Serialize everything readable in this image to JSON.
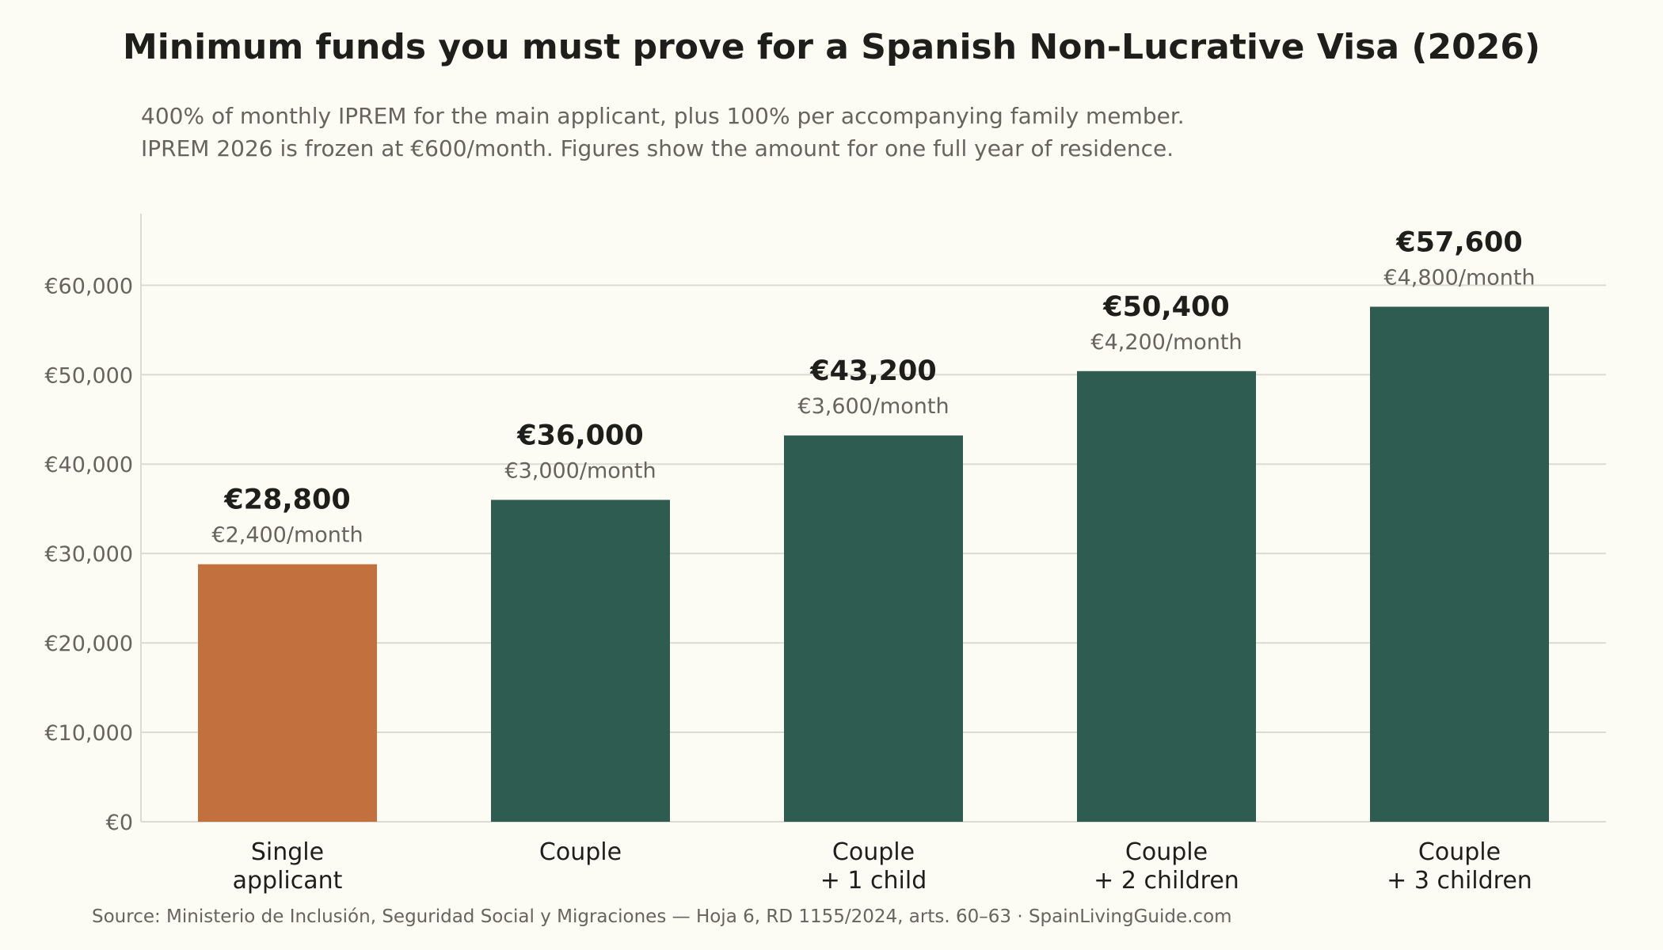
{
  "title": "Minimum funds you must prove for a Spanish Non-Lucrative Visa (2026)",
  "subtitle_lines": [
    "400% of monthly IPREM for the main applicant, plus 100% per accompanying family member.",
    "IPREM 2026 is frozen at €600/month. Figures show the amount for one full year of residence."
  ],
  "source": "Source: Ministerio de Inclusión, Seguridad Social y Migraciones — Hoja 6, RD 1155/2024, arts. 60–63  ·  SpainLivingGuide.com",
  "colors": {
    "highlight": "#c2703e",
    "bar": "#2e5c50",
    "grid": "#dcdbd3",
    "axis_text": "#66645d",
    "label_text": "#1e1e1a"
  },
  "chart_data": {
    "type": "bar",
    "categories": [
      [
        "Single",
        "applicant"
      ],
      [
        "Couple"
      ],
      [
        "Couple",
        "+ 1 child"
      ],
      [
        "Couple",
        "+ 2 children"
      ],
      [
        "Couple",
        "+ 3 children"
      ]
    ],
    "values": [
      28800,
      36000,
      43200,
      50400,
      57600
    ],
    "value_labels": [
      "€28,800",
      "€36,000",
      "€43,200",
      "€50,400",
      "€57,600"
    ],
    "monthly_labels": [
      "€2,400/month",
      "€3,000/month",
      "€3,600/month",
      "€4,200/month",
      "€4,800/month"
    ],
    "highlight_index": 0,
    "ylim": [
      0,
      68000
    ],
    "yticks": [
      0,
      10000,
      20000,
      30000,
      40000,
      50000,
      60000
    ],
    "ytick_labels": [
      "€0",
      "€10,000",
      "€20,000",
      "€30,000",
      "€40,000",
      "€50,000",
      "€60,000"
    ],
    "grid": true,
    "xlabel": "",
    "ylabel": ""
  }
}
